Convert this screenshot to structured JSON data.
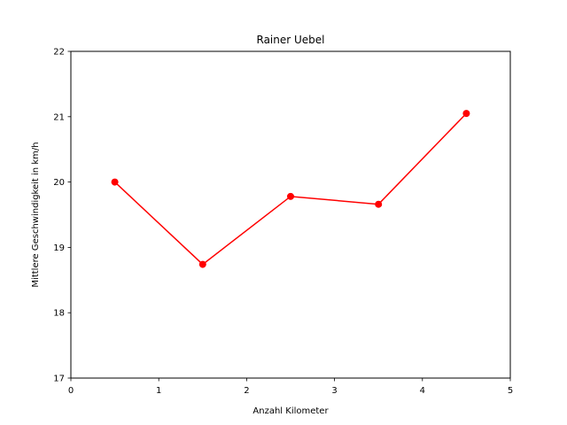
{
  "chart_data": {
    "type": "line",
    "title": "Rainer Uebel",
    "xlabel": "Anzahl Kilometer",
    "ylabel": "Mittlere Geschwindigkeit in km/h",
    "xlim": [
      0,
      5
    ],
    "ylim": [
      17,
      22
    ],
    "xticks": [
      "0",
      "1",
      "2",
      "3",
      "4",
      "5"
    ],
    "yticks": [
      "17",
      "18",
      "19",
      "20",
      "21",
      "22"
    ],
    "grid": false,
    "series": [
      {
        "color": "#ff0000",
        "marker": "circle",
        "x": [
          0.5,
          1.5,
          2.5,
          3.5,
          4.5
        ],
        "y": [
          20.0,
          18.74,
          19.78,
          19.66,
          21.05
        ]
      }
    ]
  }
}
